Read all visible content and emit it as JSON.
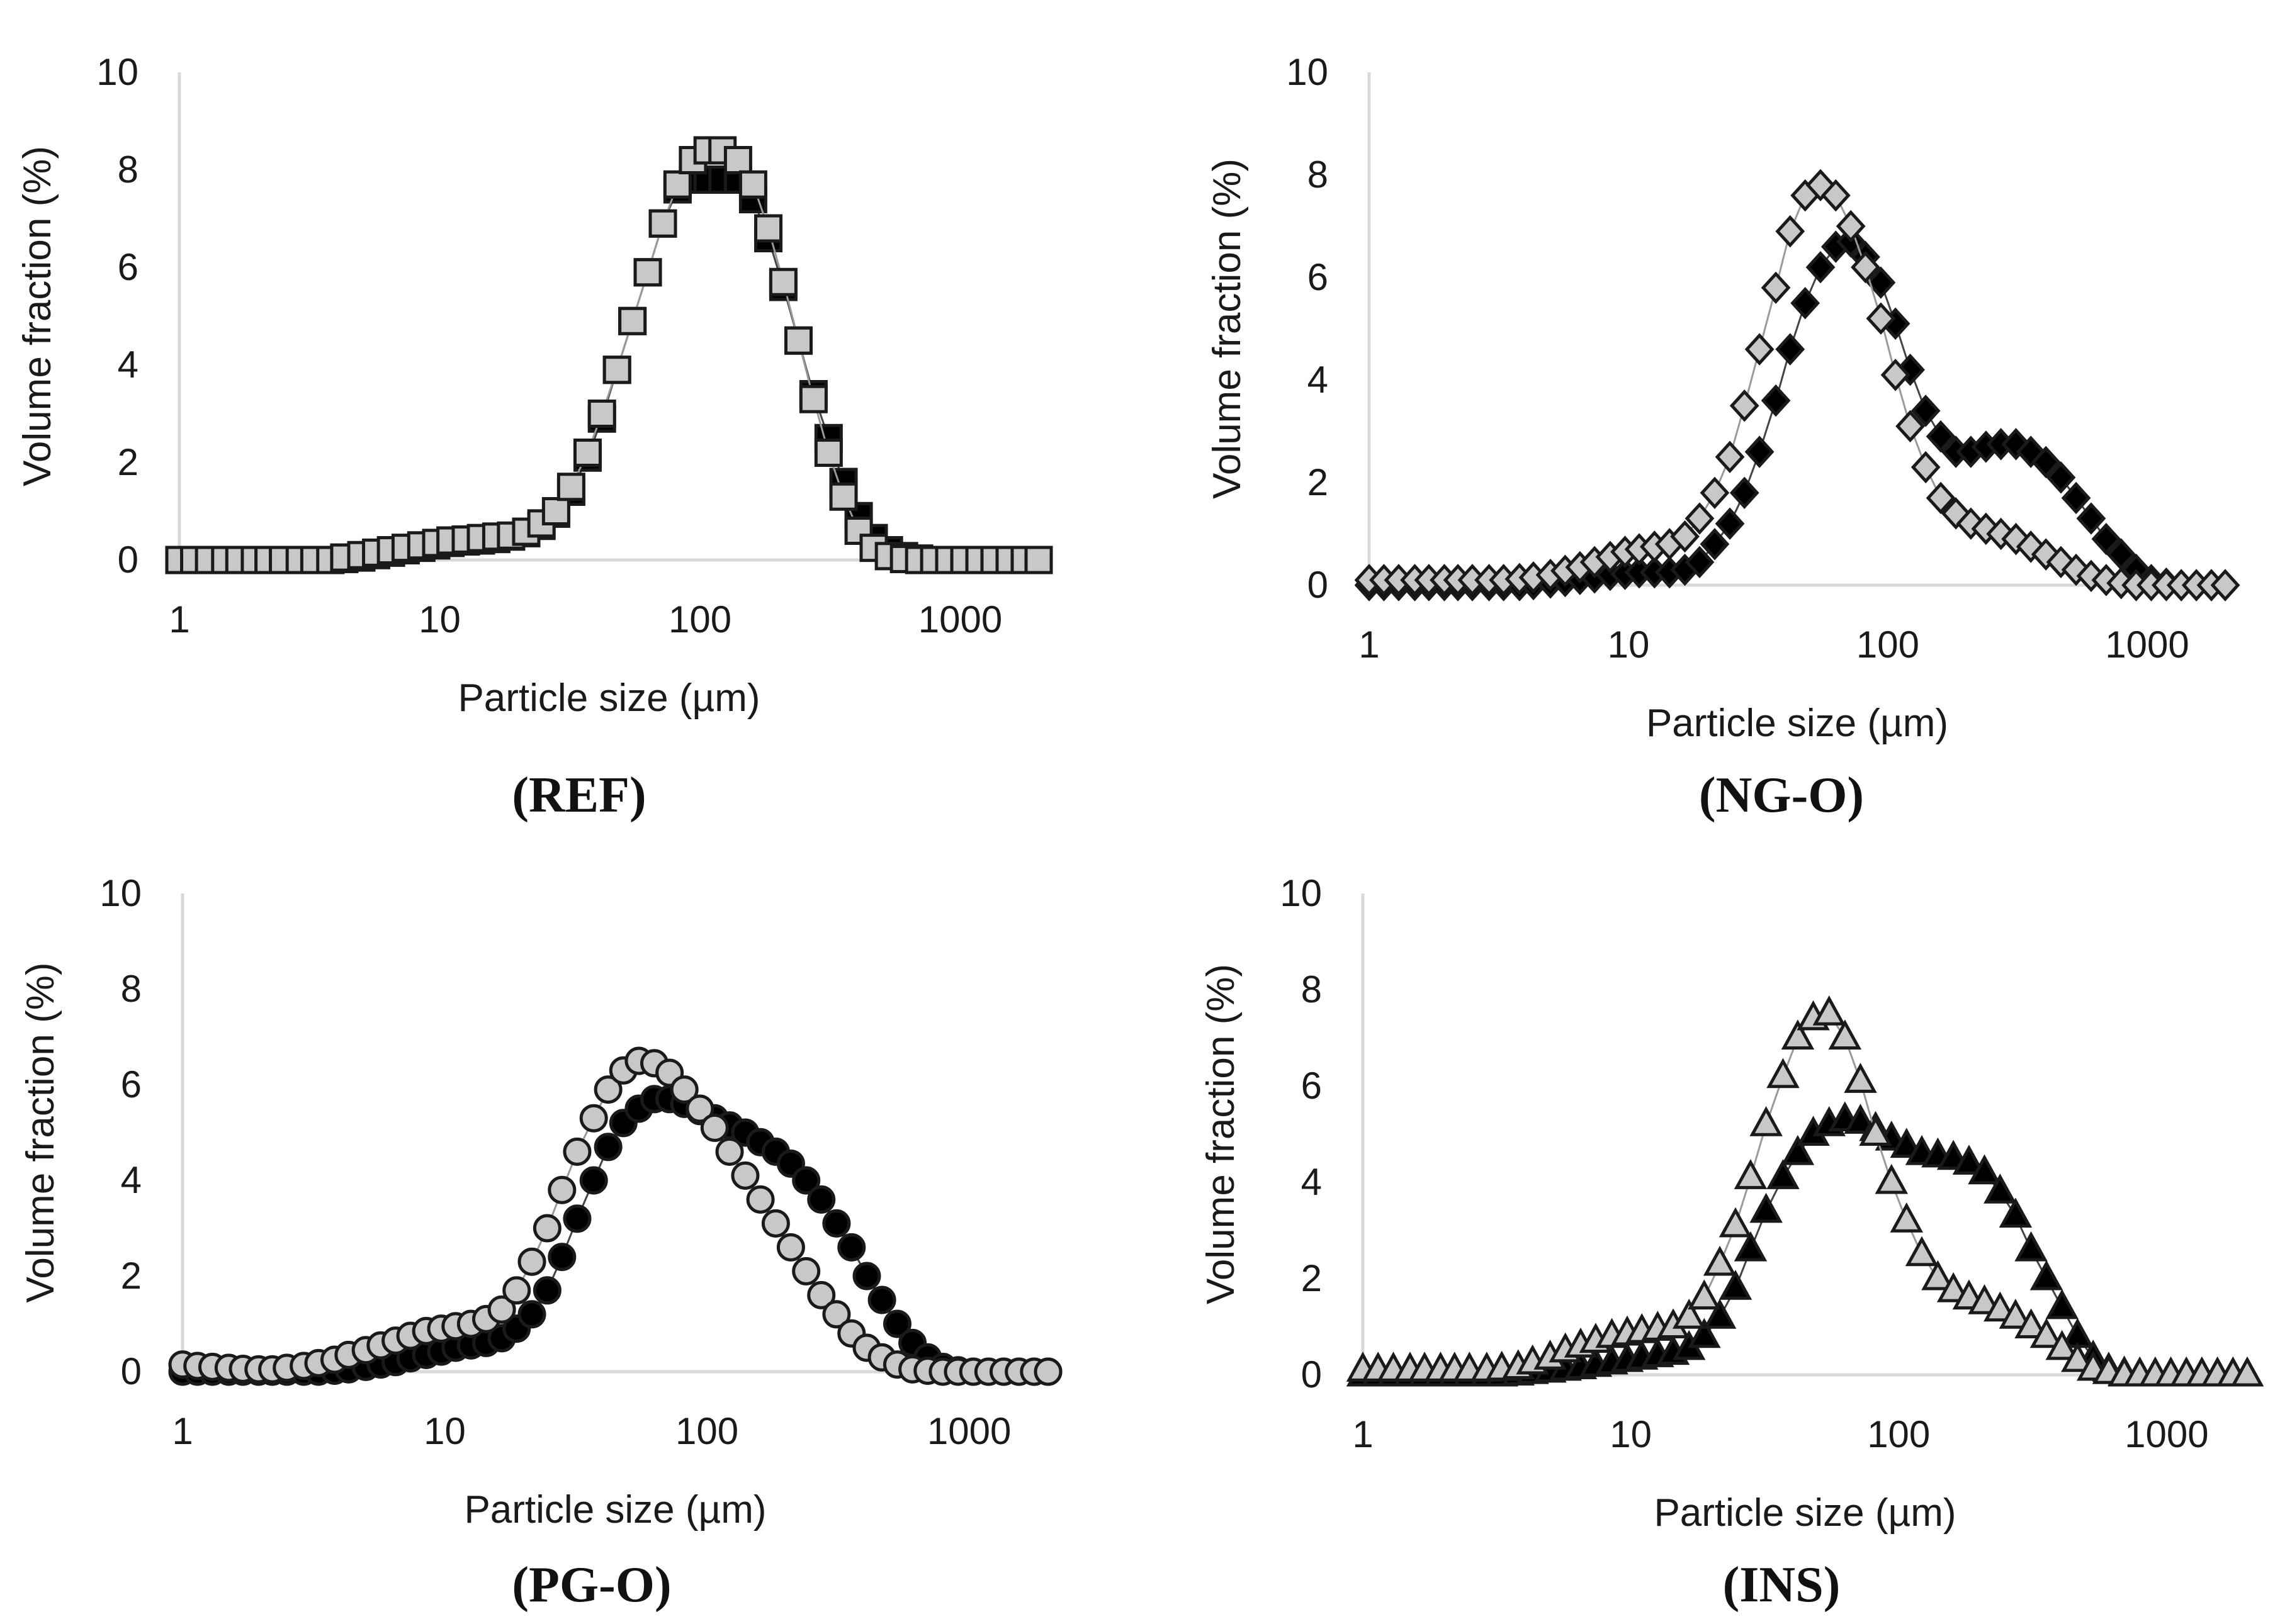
{
  "figure": {
    "panels": [
      {
        "id": "ref",
        "caption_label": "REF"
      },
      {
        "id": "ngo",
        "caption_label": "NG-O"
      },
      {
        "id": "pgo",
        "caption_label": "PG-O"
      },
      {
        "id": "ins",
        "caption_label": "INS"
      }
    ]
  },
  "chart_data": [
    {
      "type": "scatter",
      "panel": "REF",
      "marker": "square",
      "xlabel": "Particle size (µm)",
      "ylabel": "Volume fraction (%)",
      "xscale": "log",
      "xlim": [
        1,
        2000
      ],
      "ylim": [
        0,
        10
      ],
      "xticks": [
        1,
        10,
        100,
        1000
      ],
      "yticks": [
        0,
        2,
        4,
        6,
        8,
        10
      ],
      "series": [
        {
          "name": "black",
          "color": "#000000",
          "x": [
            1.0,
            1.14,
            1.3,
            1.5,
            1.7,
            1.95,
            2.2,
            2.5,
            2.9,
            3.3,
            3.8,
            4.3,
            5.0,
            5.7,
            6.5,
            7.4,
            8.5,
            9.7,
            11,
            12.6,
            14.4,
            16.5,
            18.8,
            21.5,
            24.6,
            28,
            32,
            37,
            42,
            48,
            55,
            63,
            72,
            82,
            94,
            107,
            122,
            140,
            160,
            183,
            209,
            239,
            273,
            312,
            356,
            407,
            465,
            532,
            608,
            695,
            794,
            907,
            1037,
            1185,
            1354,
            1548,
            1769,
            2000
          ],
          "y": [
            0,
            0,
            0,
            0,
            0,
            0,
            0,
            0,
            0,
            0,
            0,
            0.02,
            0.05,
            0.1,
            0.15,
            0.2,
            0.25,
            0.3,
            0.35,
            0.38,
            0.4,
            0.43,
            0.48,
            0.55,
            0.7,
            0.95,
            1.4,
            2.1,
            2.9,
            3.9,
            4.9,
            5.9,
            6.9,
            7.6,
            7.8,
            7.8,
            7.8,
            7.8,
            7.4,
            6.6,
            5.6,
            4.5,
            3.4,
            2.5,
            1.6,
            0.9,
            0.45,
            0.2,
            0.08,
            0.03,
            0,
            0,
            0,
            0,
            0,
            0,
            0,
            0
          ]
        },
        {
          "name": "gray",
          "color": "#c8c8c8",
          "x": [
            1.0,
            1.14,
            1.3,
            1.5,
            1.7,
            1.95,
            2.2,
            2.5,
            2.9,
            3.3,
            3.8,
            4.3,
            5.0,
            5.7,
            6.5,
            7.4,
            8.5,
            9.7,
            11,
            12.6,
            14.4,
            16.5,
            18.8,
            21.5,
            24.6,
            28,
            32,
            37,
            42,
            48,
            55,
            63,
            72,
            82,
            94,
            107,
            122,
            140,
            160,
            183,
            209,
            239,
            273,
            312,
            356,
            407,
            465,
            532,
            608,
            695,
            794,
            907,
            1037,
            1185,
            1354,
            1548,
            1769,
            2000
          ],
          "y": [
            0,
            0,
            0,
            0,
            0,
            0,
            0,
            0,
            0,
            0,
            0,
            0.05,
            0.1,
            0.15,
            0.2,
            0.25,
            0.3,
            0.35,
            0.4,
            0.42,
            0.45,
            0.48,
            0.5,
            0.58,
            0.75,
            1.0,
            1.5,
            2.2,
            3.0,
            3.9,
            4.9,
            5.9,
            6.9,
            7.7,
            8.2,
            8.4,
            8.4,
            8.2,
            7.7,
            6.8,
            5.7,
            4.5,
            3.3,
            2.2,
            1.3,
            0.6,
            0.25,
            0.08,
            0.02,
            0,
            0,
            0,
            0,
            0,
            0,
            0,
            0,
            0
          ]
        }
      ]
    },
    {
      "type": "scatter",
      "panel": "NG-O",
      "marker": "diamond",
      "xlabel": "Particle size (µm)",
      "ylabel": "Volume fraction (%)",
      "xscale": "log",
      "xlim": [
        1,
        2000
      ],
      "ylim": [
        0,
        10
      ],
      "xticks": [
        1,
        10,
        100,
        1000
      ],
      "yticks": [
        0,
        2,
        4,
        6,
        8,
        10
      ],
      "series": [
        {
          "name": "black",
          "color": "#000000",
          "x": [
            1.0,
            1.14,
            1.3,
            1.5,
            1.7,
            1.95,
            2.2,
            2.5,
            2.9,
            3.3,
            3.8,
            4.3,
            5.0,
            5.7,
            6.5,
            7.4,
            8.5,
            9.7,
            11,
            12.6,
            14.4,
            16.5,
            18.8,
            21.5,
            24.6,
            28,
            32,
            37,
            42,
            48,
            55,
            63,
            72,
            82,
            94,
            107,
            122,
            140,
            160,
            183,
            209,
            239,
            273,
            312,
            356,
            407,
            465,
            532,
            608,
            695,
            794,
            907,
            1037,
            1185,
            1354,
            1548,
            1769,
            2000
          ],
          "y": [
            0,
            0,
            0,
            0,
            0,
            0,
            0,
            0,
            0,
            0,
            0,
            0.02,
            0.05,
            0.08,
            0.12,
            0.15,
            0.2,
            0.22,
            0.25,
            0.25,
            0.25,
            0.3,
            0.45,
            0.8,
            1.2,
            1.8,
            2.6,
            3.6,
            4.6,
            5.5,
            6.2,
            6.6,
            6.7,
            6.4,
            5.9,
            5.1,
            4.2,
            3.4,
            2.9,
            2.6,
            2.6,
            2.7,
            2.75,
            2.75,
            2.6,
            2.4,
            2.1,
            1.7,
            1.3,
            0.9,
            0.6,
            0.3,
            0.1,
            0.03,
            0,
            0,
            0,
            0
          ]
        },
        {
          "name": "gray",
          "color": "#c8c8c8",
          "x": [
            1.0,
            1.14,
            1.3,
            1.5,
            1.7,
            1.95,
            2.2,
            2.5,
            2.9,
            3.3,
            3.8,
            4.3,
            5.0,
            5.7,
            6.5,
            7.4,
            8.5,
            9.7,
            11,
            12.6,
            14.4,
            16.5,
            18.8,
            21.5,
            24.6,
            28,
            32,
            37,
            42,
            48,
            55,
            63,
            72,
            82,
            94,
            107,
            122,
            140,
            160,
            183,
            209,
            239,
            273,
            312,
            356,
            407,
            465,
            532,
            608,
            695,
            794,
            907,
            1037,
            1185,
            1354,
            1548,
            1769,
            2000
          ],
          "y": [
            0.1,
            0.1,
            0.1,
            0.1,
            0.1,
            0.1,
            0.1,
            0.1,
            0.1,
            0.1,
            0.12,
            0.15,
            0.2,
            0.28,
            0.35,
            0.45,
            0.55,
            0.65,
            0.7,
            0.75,
            0.8,
            0.95,
            1.3,
            1.8,
            2.5,
            3.5,
            4.6,
            5.8,
            6.9,
            7.6,
            7.8,
            7.6,
            7.0,
            6.2,
            5.2,
            4.1,
            3.1,
            2.3,
            1.7,
            1.4,
            1.2,
            1.1,
            1.0,
            0.9,
            0.75,
            0.6,
            0.45,
            0.3,
            0.18,
            0.1,
            0.04,
            0,
            0,
            0,
            0,
            0,
            0,
            0
          ]
        }
      ]
    },
    {
      "type": "scatter",
      "panel": "PG-O",
      "marker": "circle",
      "xlabel": "Particle size (µm)",
      "ylabel": "Volume fraction (%)",
      "xscale": "log",
      "xlim": [
        1,
        2000
      ],
      "ylim": [
        0,
        10
      ],
      "xticks": [
        1,
        10,
        100,
        1000
      ],
      "yticks": [
        0,
        2,
        4,
        6,
        8,
        10
      ],
      "series": [
        {
          "name": "black",
          "color": "#000000",
          "x": [
            1.0,
            1.14,
            1.3,
            1.5,
            1.7,
            1.95,
            2.2,
            2.5,
            2.9,
            3.3,
            3.8,
            4.3,
            5.0,
            5.7,
            6.5,
            7.4,
            8.5,
            9.7,
            11,
            12.6,
            14.4,
            16.5,
            18.8,
            21.5,
            24.6,
            28,
            32,
            37,
            42,
            48,
            55,
            63,
            72,
            82,
            94,
            107,
            122,
            140,
            160,
            183,
            209,
            239,
            273,
            312,
            356,
            407,
            465,
            532,
            608,
            695,
            794,
            907,
            1037,
            1185,
            1354,
            1548,
            1769,
            2000
          ],
          "y": [
            0,
            0,
            0,
            0,
            0,
            0,
            0,
            0,
            0,
            0,
            0.02,
            0.05,
            0.1,
            0.15,
            0.2,
            0.28,
            0.35,
            0.42,
            0.5,
            0.55,
            0.6,
            0.7,
            0.9,
            1.2,
            1.7,
            2.4,
            3.2,
            4.0,
            4.7,
            5.2,
            5.5,
            5.7,
            5.7,
            5.6,
            5.45,
            5.3,
            5.15,
            5.0,
            4.8,
            4.6,
            4.35,
            4.0,
            3.6,
            3.1,
            2.6,
            2.0,
            1.5,
            1.0,
            0.6,
            0.3,
            0.1,
            0.03,
            0,
            0,
            0,
            0,
            0,
            0
          ]
        },
        {
          "name": "gray",
          "color": "#c8c8c8",
          "x": [
            1.0,
            1.14,
            1.3,
            1.5,
            1.7,
            1.95,
            2.2,
            2.5,
            2.9,
            3.3,
            3.8,
            4.3,
            5.0,
            5.7,
            6.5,
            7.4,
            8.5,
            9.7,
            11,
            12.6,
            14.4,
            16.5,
            18.8,
            21.5,
            24.6,
            28,
            32,
            37,
            42,
            48,
            55,
            63,
            72,
            82,
            94,
            107,
            122,
            140,
            160,
            183,
            209,
            239,
            273,
            312,
            356,
            407,
            465,
            532,
            608,
            695,
            794,
            907,
            1037,
            1185,
            1354,
            1548,
            1769,
            2000
          ],
          "y": [
            0.15,
            0.12,
            0.1,
            0.08,
            0.06,
            0.05,
            0.05,
            0.08,
            0.12,
            0.18,
            0.25,
            0.35,
            0.45,
            0.55,
            0.65,
            0.75,
            0.85,
            0.9,
            0.95,
            1.0,
            1.1,
            1.3,
            1.7,
            2.3,
            3.0,
            3.8,
            4.6,
            5.3,
            5.9,
            6.3,
            6.5,
            6.45,
            6.25,
            5.9,
            5.5,
            5.1,
            4.6,
            4.1,
            3.6,
            3.1,
            2.6,
            2.1,
            1.6,
            1.2,
            0.8,
            0.5,
            0.3,
            0.15,
            0.05,
            0.02,
            0,
            0,
            0,
            0,
            0,
            0,
            0,
            0
          ]
        }
      ]
    },
    {
      "type": "scatter",
      "panel": "INS",
      "marker": "triangle",
      "xlabel": "Particle size (µm)",
      "ylabel": "Volume fraction (%)",
      "xscale": "log",
      "xlim": [
        1,
        2000
      ],
      "ylim": [
        0,
        10
      ],
      "xticks": [
        1,
        10,
        100,
        1000
      ],
      "yticks": [
        0,
        2,
        4,
        6,
        8,
        10
      ],
      "series": [
        {
          "name": "black",
          "color": "#000000",
          "x": [
            1.0,
            1.14,
            1.3,
            1.5,
            1.7,
            1.95,
            2.2,
            2.5,
            2.9,
            3.3,
            3.8,
            4.3,
            5.0,
            5.7,
            6.5,
            7.4,
            8.5,
            9.7,
            11,
            12.6,
            14.4,
            16.5,
            18.8,
            21.5,
            24.6,
            28,
            32,
            37,
            42,
            48,
            55,
            63,
            72,
            82,
            94,
            107,
            122,
            140,
            160,
            183,
            209,
            239,
            273,
            312,
            356,
            407,
            465,
            532,
            608,
            695,
            794,
            907,
            1037,
            1185,
            1354,
            1548,
            1769,
            2000
          ],
          "y": [
            0,
            0,
            0,
            0,
            0,
            0,
            0,
            0,
            0,
            0,
            0.02,
            0.05,
            0.08,
            0.12,
            0.15,
            0.2,
            0.25,
            0.3,
            0.35,
            0.4,
            0.45,
            0.55,
            0.8,
            1.2,
            1.8,
            2.6,
            3.4,
            4.1,
            4.6,
            5.0,
            5.2,
            5.3,
            5.25,
            5.1,
            4.9,
            4.75,
            4.6,
            4.55,
            4.5,
            4.4,
            4.2,
            3.8,
            3.3,
            2.6,
            2.0,
            1.4,
            0.8,
            0.35,
            0.1,
            0.02,
            0,
            0,
            0,
            0,
            0,
            0,
            0,
            0
          ]
        },
        {
          "name": "gray",
          "color": "#c8c8c8",
          "x": [
            1.0,
            1.14,
            1.3,
            1.5,
            1.7,
            1.95,
            2.2,
            2.5,
            2.9,
            3.3,
            3.8,
            4.3,
            5.0,
            5.7,
            6.5,
            7.4,
            8.5,
            9.7,
            11,
            12.6,
            14.4,
            16.5,
            18.8,
            21.5,
            24.6,
            28,
            32,
            37,
            42,
            48,
            55,
            63,
            72,
            82,
            94,
            107,
            122,
            140,
            160,
            183,
            209,
            239,
            273,
            312,
            356,
            407,
            465,
            532,
            608,
            695,
            794,
            907,
            1037,
            1185,
            1354,
            1548,
            1769,
            2000
          ],
          "y": [
            0.1,
            0.1,
            0.1,
            0.1,
            0.1,
            0.1,
            0.1,
            0.1,
            0.1,
            0.12,
            0.15,
            0.25,
            0.35,
            0.5,
            0.6,
            0.7,
            0.8,
            0.85,
            0.9,
            0.95,
            1.0,
            1.2,
            1.6,
            2.3,
            3.1,
            4.1,
            5.2,
            6.2,
            7.0,
            7.4,
            7.5,
            7.0,
            6.1,
            5.0,
            4.0,
            3.2,
            2.5,
            2.0,
            1.75,
            1.6,
            1.5,
            1.35,
            1.2,
            1.0,
            0.8,
            0.55,
            0.3,
            0.12,
            0.05,
            0,
            0,
            0,
            0,
            0,
            0,
            0,
            0,
            0
          ]
        }
      ]
    }
  ]
}
